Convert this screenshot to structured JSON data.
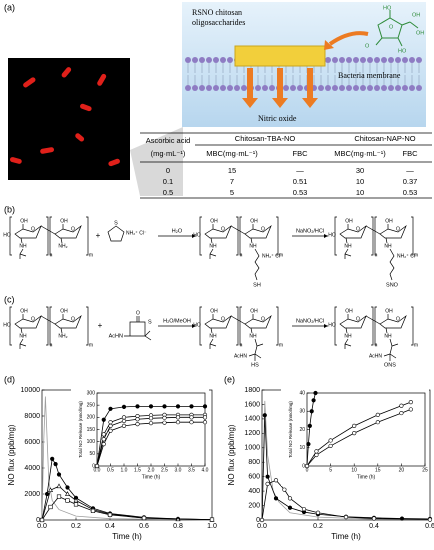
{
  "panel_a": {
    "label": "(a)",
    "diagram": {
      "conjugate": [
        "RSNO chitosan",
        "oligosaccharides"
      ],
      "membrane": "Bacteria membrane",
      "product": "Nitric oxide",
      "structure_labels": [
        "HO",
        "OH",
        "O",
        "O",
        "HO",
        "OH"
      ]
    },
    "table": {
      "col0_header": [
        "Ascorbic acid",
        "(mg·mL⁻¹)"
      ],
      "groups": [
        "Chitosan-TBA-NO",
        "Chitosan-NAP-NO"
      ],
      "subheaders": [
        "MBC(mg·mL⁻¹)",
        "FBC",
        "MBC(mg·mL⁻¹)",
        "FBC"
      ],
      "rows": [
        [
          0,
          15,
          "—",
          30,
          "—"
        ],
        [
          0.1,
          7,
          0.51,
          10,
          0.37
        ],
        [
          0.5,
          5,
          0.53,
          10,
          0.53
        ]
      ]
    }
  },
  "chitosan_labels": {
    "hydroxyl": "OH",
    "ring_oxygen": "O",
    "end_hydroxyl": "HO",
    "amide": "NH",
    "amine": "NH₂",
    "repeat_n": "n",
    "repeat_m": "m"
  },
  "scheme_b": {
    "label": "(b)",
    "plus": "+",
    "reagent_sulfur": "S",
    "reagent_iminium": "NH₂⁺ Cl⁻",
    "step_1": "H₂O",
    "step_2": "NaNO₂/HCl",
    "chain_cation": "NH₂⁺ Cl⁻",
    "thiol": "SH",
    "nitrosothiol": "SNO"
  },
  "scheme_c": {
    "label": "(c)",
    "plus": "+",
    "reagent_amide": "AcHN",
    "reagent_sulfur": "S",
    "reagent_oxygen": "O",
    "step_1": "H₂O/MeOH",
    "step_2": "NaNO₂/HCl",
    "chain_amide": "AcHN",
    "thiol": "HS",
    "nitrosothiol": "ONS"
  },
  "chart_data": [
    {
      "type": "line",
      "label": "(d)",
      "xlabel": "Time (h)",
      "ylabel": "NO flux (ppb/mg)",
      "xlim": [
        0,
        1
      ],
      "ylim": [
        0,
        10000
      ],
      "xticks": [
        {
          "value": 0,
          "label": "0.0"
        },
        0.2,
        0.4,
        0.6,
        0.8,
        {
          "value": 1,
          "label": "1.0"
        }
      ],
      "yticks": [
        0,
        2000,
        4000,
        6000,
        8000,
        10000
      ],
      "series": [
        {
          "color": "#9e9e9e",
          "marker": "none",
          "x": [
            0,
            0.01,
            0.02,
            0.04,
            0.06,
            0.1,
            0.2,
            0.4,
            1.0
          ],
          "values": [
            0,
            6000,
            9500,
            3000,
            1500,
            800,
            300,
            100,
            0
          ]
        },
        {
          "color": "#000000",
          "marker": "filled-circle",
          "x": [
            0,
            0.03,
            0.06,
            0.08,
            0.1,
            0.15,
            0.2,
            0.3,
            0.4,
            0.6,
            0.8,
            1.0
          ],
          "values": [
            0,
            2000,
            4700,
            4300,
            3500,
            2500,
            1700,
            900,
            500,
            200,
            80,
            30
          ]
        },
        {
          "color": "#000000",
          "marker": "open-triangle",
          "x": [
            0,
            0.05,
            0.1,
            0.15,
            0.2,
            0.3,
            0.4,
            0.6,
            0.8,
            1.0
          ],
          "values": [
            0,
            2300,
            2600,
            2000,
            1500,
            800,
            450,
            150,
            60,
            20
          ]
        },
        {
          "color": "#000000",
          "marker": "open-square",
          "x": [
            0,
            0.05,
            0.1,
            0.15,
            0.2,
            0.3,
            0.4,
            0.6,
            1.0
          ],
          "values": [
            0,
            1000,
            1800,
            1500,
            1200,
            700,
            400,
            150,
            30
          ]
        }
      ]
    },
    {
      "type": "line",
      "xlabel": "Time (h)",
      "ylabel": "Total NO Release (nmol/mg)",
      "xlim": [
        0,
        4
      ],
      "ylim": [
        0,
        300
      ],
      "xticks": [
        {
          "value": 0,
          "label": "0.0"
        },
        0.5,
        {
          "value": 1,
          "label": "1.0"
        },
        1.5,
        {
          "value": 2,
          "label": "2.0"
        },
        2.5,
        {
          "value": 3,
          "label": "3.0"
        },
        3.5,
        {
          "value": 4,
          "label": "4.0"
        }
      ],
      "yticks": [
        0,
        50,
        100,
        150,
        200,
        250,
        300
      ],
      "series": [
        {
          "color": "#000000",
          "marker": "filled-circle",
          "x": [
            0,
            0.25,
            0.5,
            1,
            1.5,
            2,
            2.5,
            3,
            3.5,
            4
          ],
          "values": [
            0,
            190,
            235,
            243,
            245,
            245,
            245,
            245,
            245,
            245
          ]
        },
        {
          "color": "#000000",
          "marker": "open-circle",
          "x": [
            0,
            0.25,
            0.5,
            1,
            1.5,
            2,
            2.5,
            3,
            3.5,
            4
          ],
          "values": [
            0,
            130,
            180,
            200,
            205,
            208,
            210,
            210,
            210,
            210
          ]
        },
        {
          "color": "#000000",
          "marker": "open-circle",
          "x": [
            0,
            0.25,
            0.5,
            1,
            1.5,
            2,
            2.5,
            3,
            3.5,
            4
          ],
          "values": [
            0,
            110,
            165,
            185,
            192,
            196,
            198,
            200,
            200,
            200
          ]
        },
        {
          "color": "#000000",
          "marker": "open-circle",
          "x": [
            0,
            0.25,
            0.5,
            1,
            1.5,
            2,
            2.5,
            3,
            3.5,
            4
          ],
          "values": [
            0,
            90,
            145,
            165,
            172,
            176,
            178,
            180,
            180,
            180
          ]
        }
      ]
    },
    {
      "type": "line",
      "label": "(e)",
      "xlabel": "Time (h)",
      "ylabel": "NO flux (ppb/mg)",
      "xlim": [
        0,
        0.6
      ],
      "ylim": [
        0,
        1800
      ],
      "xticks": [
        {
          "value": 0,
          "label": "0.0"
        },
        0.2,
        0.4,
        0.6
      ],
      "yticks": [
        0,
        200,
        400,
        600,
        800,
        1000,
        1200,
        1400,
        1600,
        1800
      ],
      "series": [
        {
          "color": "#9e9e9e",
          "marker": "none",
          "x": [
            0,
            0.01,
            0.02,
            0.04,
            0.06,
            0.1,
            0.2,
            0.4,
            0.6
          ],
          "values": [
            0,
            1650,
            900,
            400,
            250,
            100,
            40,
            10,
            5
          ]
        },
        {
          "color": "#000000",
          "marker": "filled-circle",
          "x": [
            0,
            0.01,
            0.02,
            0.05,
            0.1,
            0.15,
            0.2,
            0.3,
            0.4,
            0.5,
            0.6
          ],
          "values": [
            0,
            1450,
            600,
            300,
            170,
            110,
            80,
            45,
            30,
            20,
            15
          ]
        },
        {
          "color": "#000000",
          "marker": "open-circle",
          "x": [
            0,
            0.02,
            0.05,
            0.08,
            0.1,
            0.15,
            0.2,
            0.3,
            0.4,
            0.6
          ],
          "values": [
            0,
            500,
            550,
            420,
            300,
            150,
            100,
            40,
            20,
            5
          ]
        }
      ]
    },
    {
      "type": "line",
      "xlabel": "Time (h)",
      "ylabel": "Total NO Release (nmol/mg)",
      "xlim": [
        0,
        25
      ],
      "ylim": [
        0,
        40
      ],
      "xticks": [
        0,
        5,
        10,
        15,
        20,
        25
      ],
      "yticks": [
        0,
        10,
        20,
        30,
        40
      ],
      "series": [
        {
          "color": "#000000",
          "marker": "filled-circle",
          "x": [
            0,
            0.3,
            0.6,
            1,
            1.4,
            1.8
          ],
          "values": [
            0,
            12,
            22,
            30,
            36,
            40
          ]
        },
        {
          "color": "#000000",
          "marker": "open-circle",
          "x": [
            0,
            2,
            5,
            10,
            15,
            20,
            22
          ],
          "values": [
            0,
            8,
            14,
            22,
            28,
            33,
            35
          ]
        },
        {
          "color": "#000000",
          "marker": "open-circle",
          "x": [
            0,
            2,
            5,
            10,
            15,
            20,
            22
          ],
          "values": [
            0,
            6,
            11,
            18,
            24,
            29,
            31
          ]
        }
      ]
    }
  ]
}
